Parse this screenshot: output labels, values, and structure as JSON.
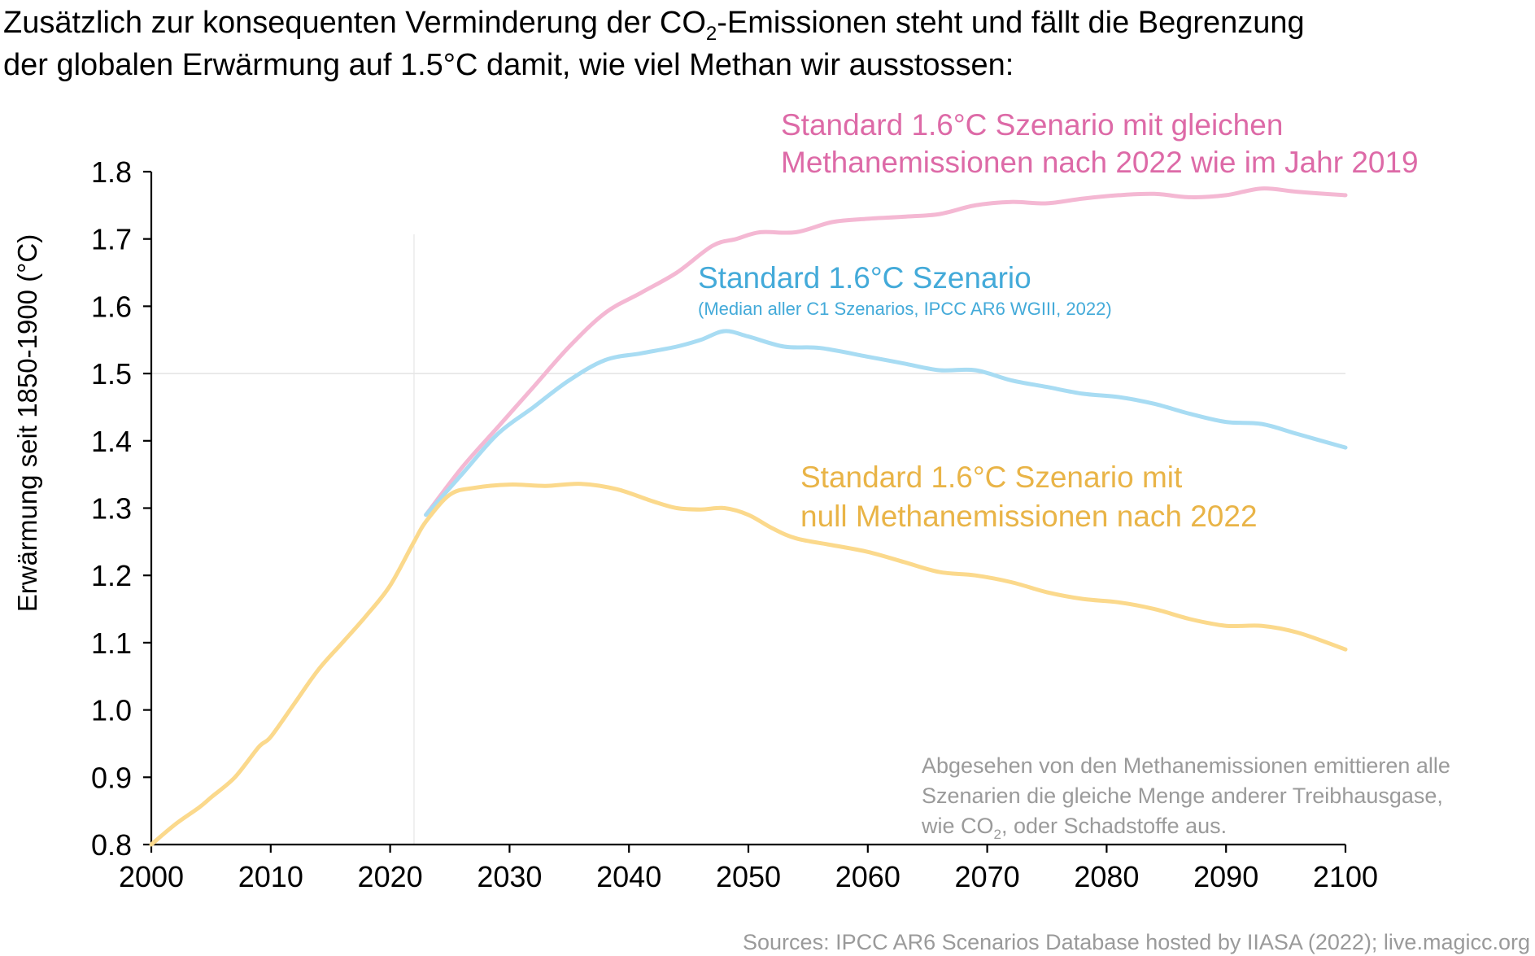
{
  "chart_data": {
    "type": "line",
    "title": {
      "line1_pre": "Zusätzlich zur konsequenten Verminderung der CO",
      "line1_sub": "2",
      "line1_post": "-Emissionen steht und fällt die Begrenzung",
      "line2": "der globalen Erwärmung auf 1.5°C damit, wie viel Methan wir ausstossen:"
    },
    "xlabel": "",
    "ylabel": "Erwärmung seit 1850-1900 (°C)",
    "xlim": [
      2000,
      2100
    ],
    "ylim": [
      0.8,
      1.8
    ],
    "x_ticks": [
      2000,
      2010,
      2020,
      2030,
      2040,
      2050,
      2060,
      2070,
      2080,
      2090,
      2100
    ],
    "x_tick_labels": [
      "2000",
      "2010",
      "2020",
      "2030",
      "2040",
      "2050",
      "2060",
      "2070",
      "2080",
      "2090",
      "2100"
    ],
    "y_ticks": [
      0.8,
      0.9,
      1.0,
      1.1,
      1.2,
      1.3,
      1.4,
      1.5,
      1.6,
      1.7,
      1.8
    ],
    "y_tick_labels": [
      "0.8",
      "0.9",
      "1.0",
      "1.1",
      "1.2",
      "1.3",
      "1.4",
      "1.5",
      "1.6",
      "1.7",
      "1.8"
    ],
    "reference_lines": {
      "horizontal_y": 1.5,
      "vertical_x": 2022
    },
    "grid": false,
    "series": [
      {
        "key": "pink",
        "color": "#f4b8d3",
        "x": [
          2023,
          2026,
          2029,
          2032,
          2035,
          2038,
          2041,
          2044,
          2047,
          2049,
          2051,
          2054,
          2057,
          2060,
          2063,
          2066,
          2069,
          2072,
          2075,
          2078,
          2081,
          2084,
          2087,
          2090,
          2093,
          2096,
          2100
        ],
        "values": [
          1.29,
          1.36,
          1.42,
          1.48,
          1.54,
          1.59,
          1.62,
          1.65,
          1.69,
          1.7,
          1.71,
          1.71,
          1.725,
          1.73,
          1.733,
          1.737,
          1.75,
          1.755,
          1.753,
          1.76,
          1.765,
          1.767,
          1.762,
          1.765,
          1.775,
          1.77,
          1.765
        ]
      },
      {
        "key": "blue",
        "color": "#a8dcf3",
        "x": [
          2023,
          2026,
          2029,
          2032,
          2035,
          2038,
          2041,
          2044,
          2046,
          2048,
          2050,
          2053,
          2056,
          2060,
          2063,
          2066,
          2069,
          2072,
          2075,
          2078,
          2081,
          2084,
          2087,
          2090,
          2093,
          2096,
          2100
        ],
        "values": [
          1.29,
          1.35,
          1.41,
          1.45,
          1.49,
          1.52,
          1.53,
          1.54,
          1.55,
          1.563,
          1.555,
          1.54,
          1.538,
          1.525,
          1.515,
          1.505,
          1.505,
          1.49,
          1.48,
          1.47,
          1.465,
          1.455,
          1.44,
          1.428,
          1.425,
          1.41,
          1.39
        ]
      },
      {
        "key": "yellow",
        "color": "#fbd98c",
        "x": [
          2000,
          2002,
          2004,
          2005,
          2007,
          2009,
          2010,
          2012,
          2014,
          2016,
          2018,
          2020,
          2022,
          2023,
          2025,
          2027,
          2030,
          2033,
          2036,
          2039,
          2042,
          2044,
          2046,
          2048,
          2050,
          2052,
          2054,
          2057,
          2060,
          2063,
          2066,
          2069,
          2072,
          2075,
          2078,
          2081,
          2084,
          2087,
          2090,
          2093,
          2096,
          2100
        ],
        "values": [
          0.8,
          0.83,
          0.855,
          0.87,
          0.9,
          0.945,
          0.96,
          1.01,
          1.06,
          1.1,
          1.14,
          1.185,
          1.25,
          1.28,
          1.32,
          1.33,
          1.335,
          1.333,
          1.336,
          1.328,
          1.31,
          1.3,
          1.298,
          1.3,
          1.29,
          1.27,
          1.255,
          1.245,
          1.235,
          1.22,
          1.205,
          1.2,
          1.19,
          1.175,
          1.165,
          1.16,
          1.15,
          1.135,
          1.125,
          1.125,
          1.115,
          1.09
        ]
      }
    ],
    "annotations": {
      "pink_line1": "Standard 1.6°C Szenario mit gleichen",
      "pink_line2": "Methanemissionen nach 2022 wie im Jahr 2019",
      "pink_color": "#dd6aa7",
      "blue_line1": "Standard 1.6°C Szenario",
      "blue_line2": "(Median aller C1 Szenarios, IPCC AR6 WGIII, 2022)",
      "blue_color": "#43aad9",
      "yellow_line1": "Standard 1.6°C Szenario mit",
      "yellow_line2": "null Methanemissionen nach 2022",
      "yellow_color": "#e9b447",
      "note_line1": "Abgesehen von den Methanemissionen emittieren alle",
      "note_line2": "Szenarien die gleiche Menge anderer Treibhausgase,",
      "note_line3_pre": "wie CO",
      "note_line3_sub": "2",
      "note_line3_post": ", oder Schadstoffe aus.",
      "note_color": "#9a9a9a",
      "sources": "Sources: IPCC AR6 Scenarios Database hosted by IIASA (2022); live.magicc.org"
    }
  }
}
